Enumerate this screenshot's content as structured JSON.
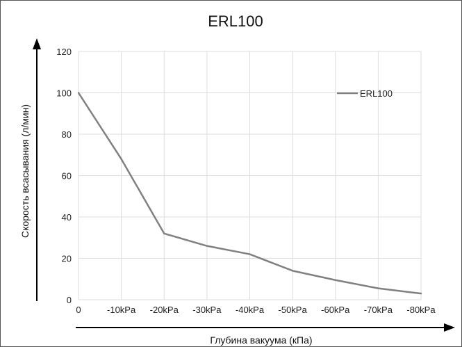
{
  "chart_data": {
    "type": "line",
    "title": "ERL100",
    "xlabel": "Глубина вакуума (кПа)",
    "ylabel": "Скорость всасывания (л/мин)",
    "categories": [
      "0",
      "-10kPa",
      "-20kPa",
      "-30kPa",
      "-40kPa",
      "-50kPa",
      "-60kPa",
      "-70kPa",
      "-80kPa"
    ],
    "series": [
      {
        "name": "ERL100",
        "values": [
          100,
          68,
          32,
          26,
          22,
          14,
          9.5,
          5.5,
          3
        ]
      }
    ],
    "ylim": [
      0,
      120
    ],
    "yticks": [
      0,
      20,
      40,
      60,
      80,
      100,
      120
    ],
    "grid": true,
    "legend_position": "top-right",
    "colors": {
      "series": "#808080",
      "grid": "#dddddd",
      "axis_arrow": "#000000"
    }
  }
}
